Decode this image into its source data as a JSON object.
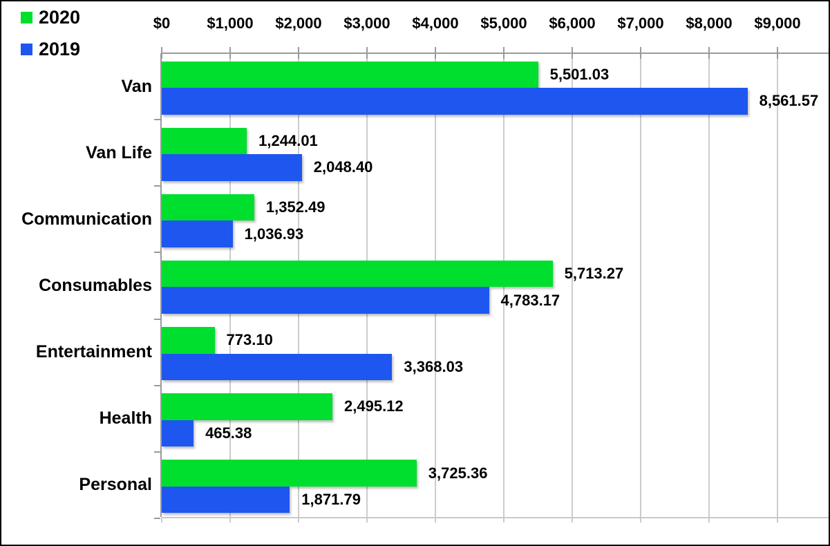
{
  "chart_data": {
    "type": "bar",
    "orientation": "horizontal",
    "title": "",
    "categories": [
      "Van",
      "Van Life",
      "Communication",
      "Consumables",
      "Entertainment",
      "Health",
      "Personal"
    ],
    "series": [
      {
        "name": "2020",
        "color": "#00DF2E",
        "values": [
          5501.03,
          1244.01,
          1352.49,
          5713.27,
          773.1,
          2495.12,
          3725.36
        ],
        "value_labels": [
          "5,501.03",
          "1,244.01",
          "1,352.49",
          "5,713.27",
          "773.10",
          "2,495.12",
          "3,725.36"
        ]
      },
      {
        "name": "2019",
        "color": "#1E56F0",
        "values": [
          8561.57,
          2048.4,
          1036.93,
          4783.17,
          3368.03,
          465.38,
          1871.79
        ],
        "value_labels": [
          "8,561.57",
          "2,048.40",
          "1,036.93",
          "4,783.17",
          "3,368.03",
          "465.38",
          "1,871.79"
        ]
      }
    ],
    "x_tick_labels": [
      "$0",
      "$1,000",
      "$2,000",
      "$3,000",
      "$4,000",
      "$5,000",
      "$6,000",
      "$7,000",
      "$8,000",
      "$9,000"
    ],
    "x_tick_values": [
      0,
      1000,
      2000,
      3000,
      4000,
      5000,
      6000,
      7000,
      8000,
      9000
    ],
    "xlim": [
      0,
      9000
    ],
    "grid": true,
    "legend_position": "top-left",
    "gridline_color": "#cccccc",
    "axis_color": "#9a9a9a",
    "label_color": "#000000"
  }
}
